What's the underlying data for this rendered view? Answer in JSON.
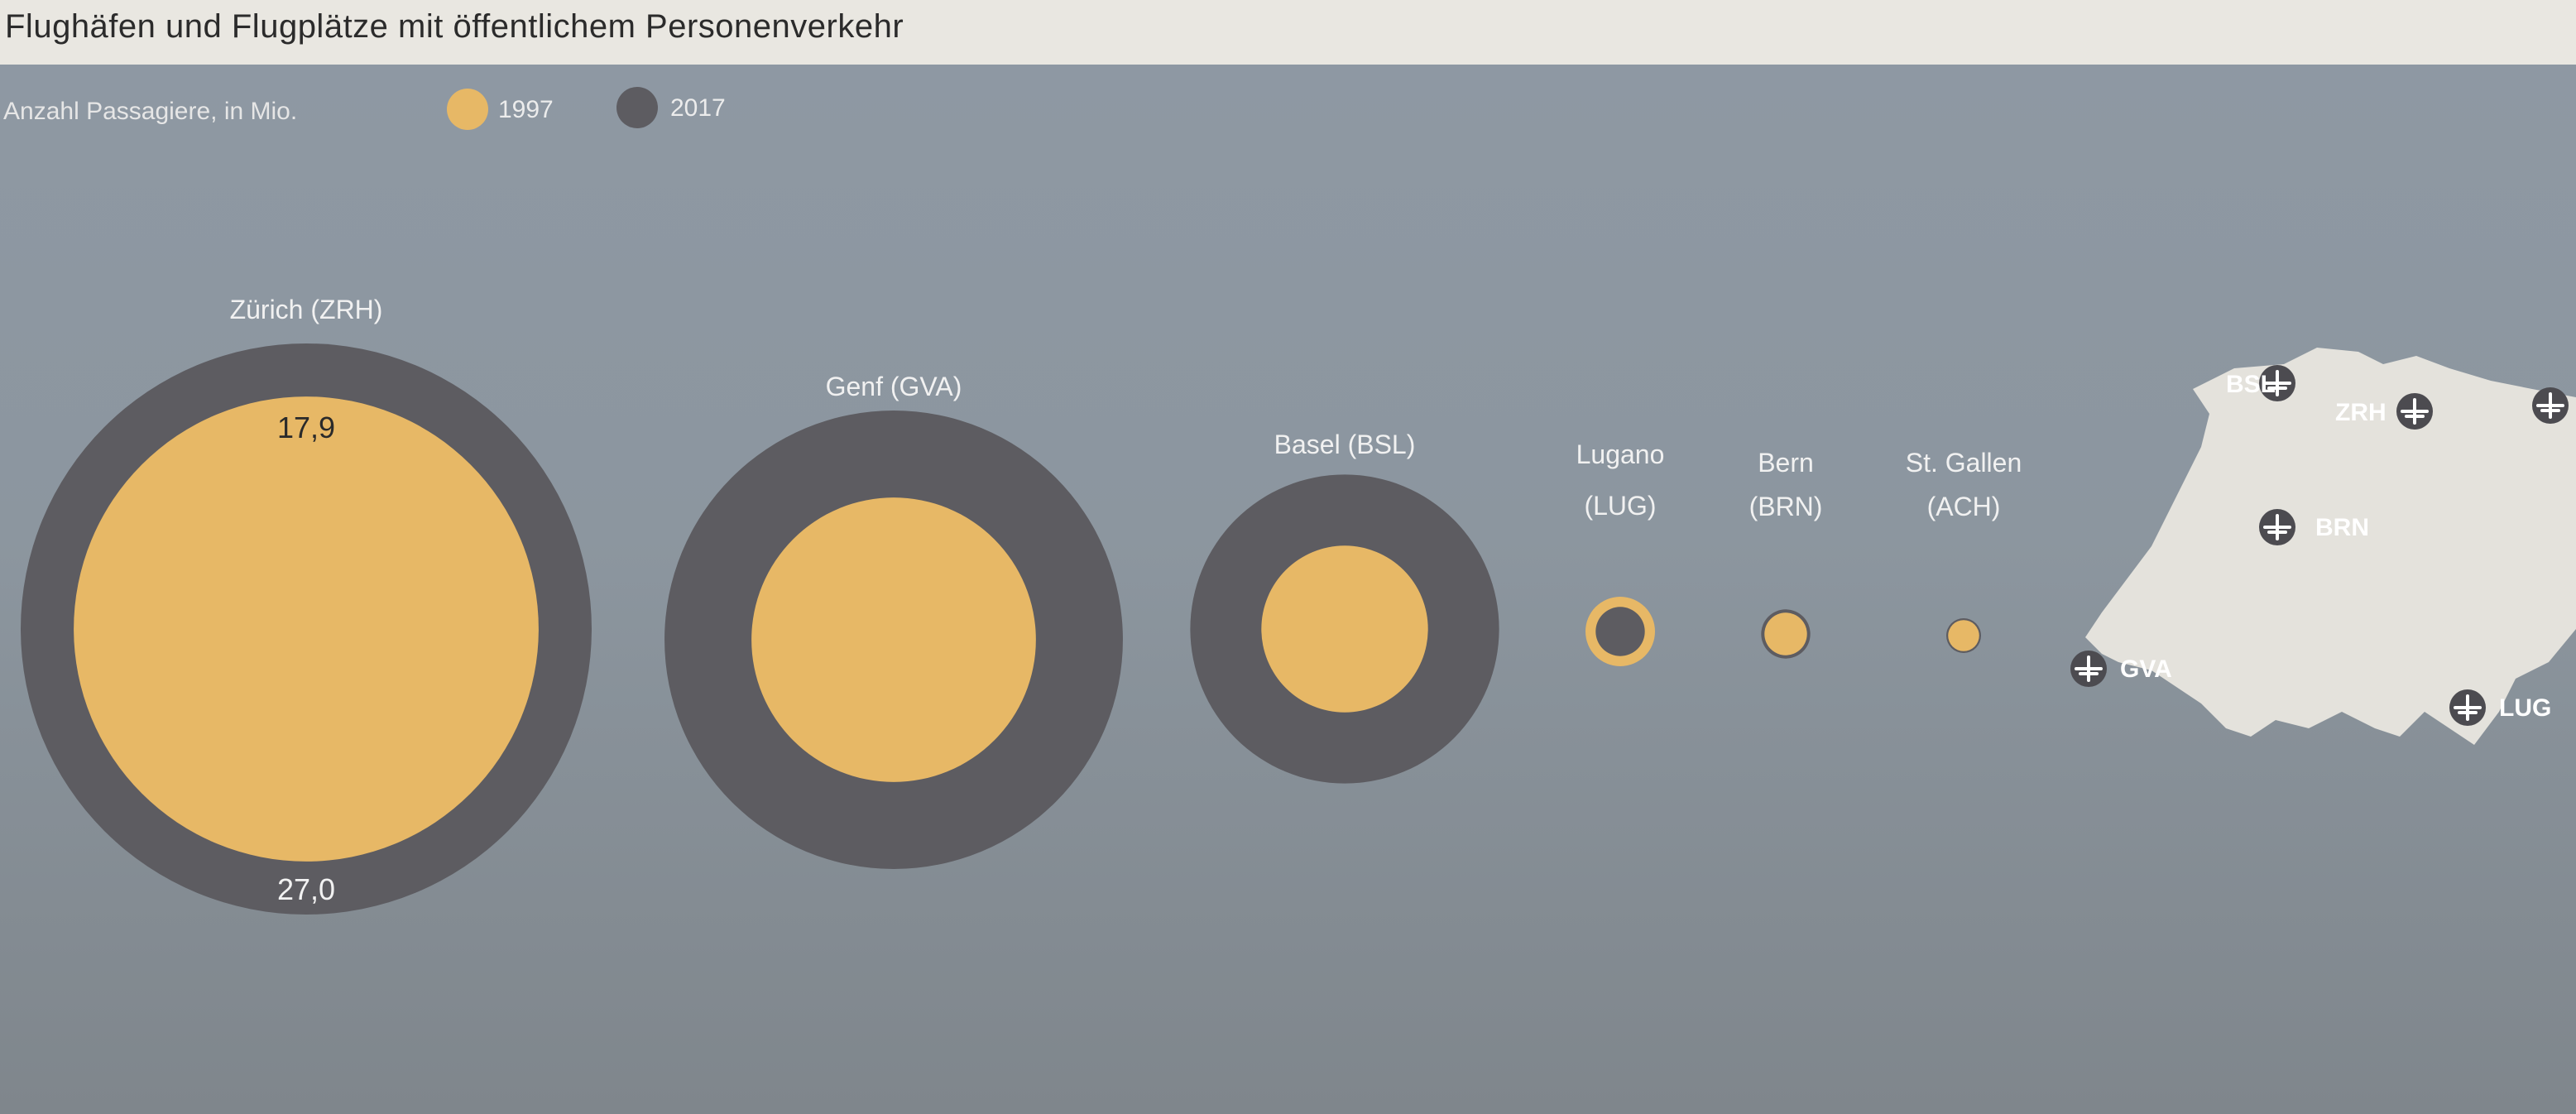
{
  "title": "Flughäfen und Flugplätze mit öffentlichem Personenverkehr",
  "subtitle": "Anzahl Passagiere, in Mio.",
  "colors": {
    "y1997": "#e7b866",
    "y2017": "#5d5c61"
  },
  "legend": [
    {
      "label": "1997",
      "color": "#e7b866"
    },
    {
      "label": "2017",
      "color": "#5d5c61"
    }
  ],
  "chart_data": {
    "type": "bubble",
    "title": "Flughäfen und Flugplätze mit öffentlichem Personenverkehr",
    "subtitle": "Anzahl Passagiere, in Mio.",
    "series": [
      {
        "name": "1997",
        "color": "#e7b866"
      },
      {
        "name": "2017",
        "color": "#5d5c61"
      }
    ],
    "airports": [
      {
        "name": "Zürich (ZRH)",
        "label_lines": [
          "Zürich (ZRH)"
        ],
        "v1997": 17.9,
        "v2017": 27.0,
        "label1997": "17,9",
        "label2017": "27,0"
      },
      {
        "name": "Genf (GVA)",
        "label_lines": [
          "Genf (GVA)"
        ],
        "v1997": 6.7,
        "v2017": 17.4
      },
      {
        "name": "Basel (BSL)",
        "label_lines": [
          "Basel (BSL)"
        ],
        "v1997": 2.3,
        "v2017": 7.9
      },
      {
        "name": "Lugano (LUG)",
        "label_lines": [
          "Lugano",
          "(LUG)"
        ],
        "v1997": 0.4,
        "v2017": 0.2
      },
      {
        "name": "Bern (BRN)",
        "label_lines": [
          "Bern",
          "(BRN)"
        ],
        "v1997": 0.15,
        "v2017": 0.2
      },
      {
        "name": "St. Gallen (ACH)",
        "label_lines": [
          "St. Gallen",
          "(ACH)"
        ],
        "v1997": 0.08,
        "v2017": 0.1
      }
    ]
  },
  "map": {
    "airports": [
      {
        "code": "BSL",
        "label": "BSL"
      },
      {
        "code": "ZRH",
        "label": "ZRH"
      },
      {
        "code": "ACH",
        "label": ""
      },
      {
        "code": "BRN",
        "label": "BRN"
      },
      {
        "code": "GVA",
        "label": "GVA"
      },
      {
        "code": "LUG",
        "label": "LUG"
      }
    ]
  }
}
